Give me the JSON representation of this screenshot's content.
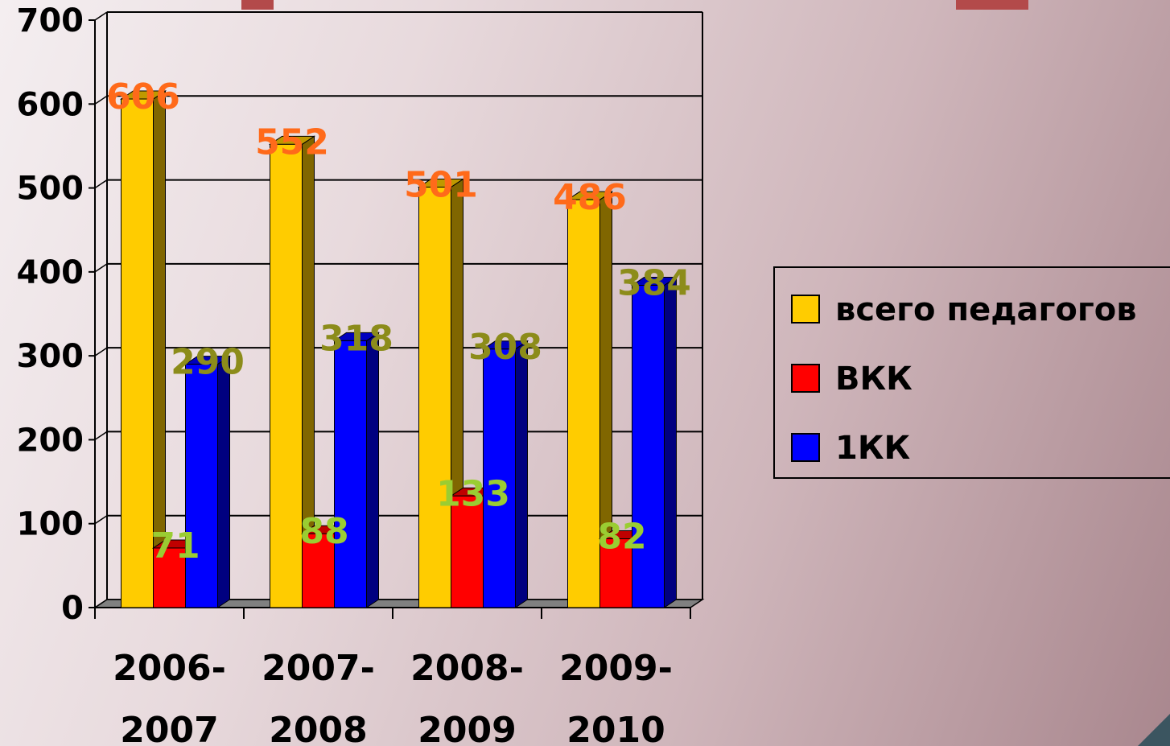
{
  "chart_data": {
    "type": "bar",
    "categories": [
      [
        "2006-",
        "2007"
      ],
      [
        "2007-",
        "2008"
      ],
      [
        "2008-",
        "2009"
      ],
      [
        "2009-",
        "2010"
      ]
    ],
    "series": [
      {
        "name": "всего педагогов",
        "values": [
          606,
          552,
          501,
          486
        ],
        "color": "#ffcc00",
        "label_color": "#ff6a1a"
      },
      {
        "name": "ВКК",
        "values": [
          71,
          88,
          133,
          82
        ],
        "color": "#ff0000",
        "label_color": "#9acd32"
      },
      {
        "name": "1КК",
        "values": [
          290,
          318,
          308,
          384
        ],
        "color": "#0000ff",
        "label_color": "#8c8c1a"
      }
    ],
    "ylim": [
      0,
      700
    ],
    "yticks": [
      0,
      100,
      200,
      300,
      400,
      500,
      600,
      700
    ],
    "grid": true,
    "legend_position": "right"
  }
}
